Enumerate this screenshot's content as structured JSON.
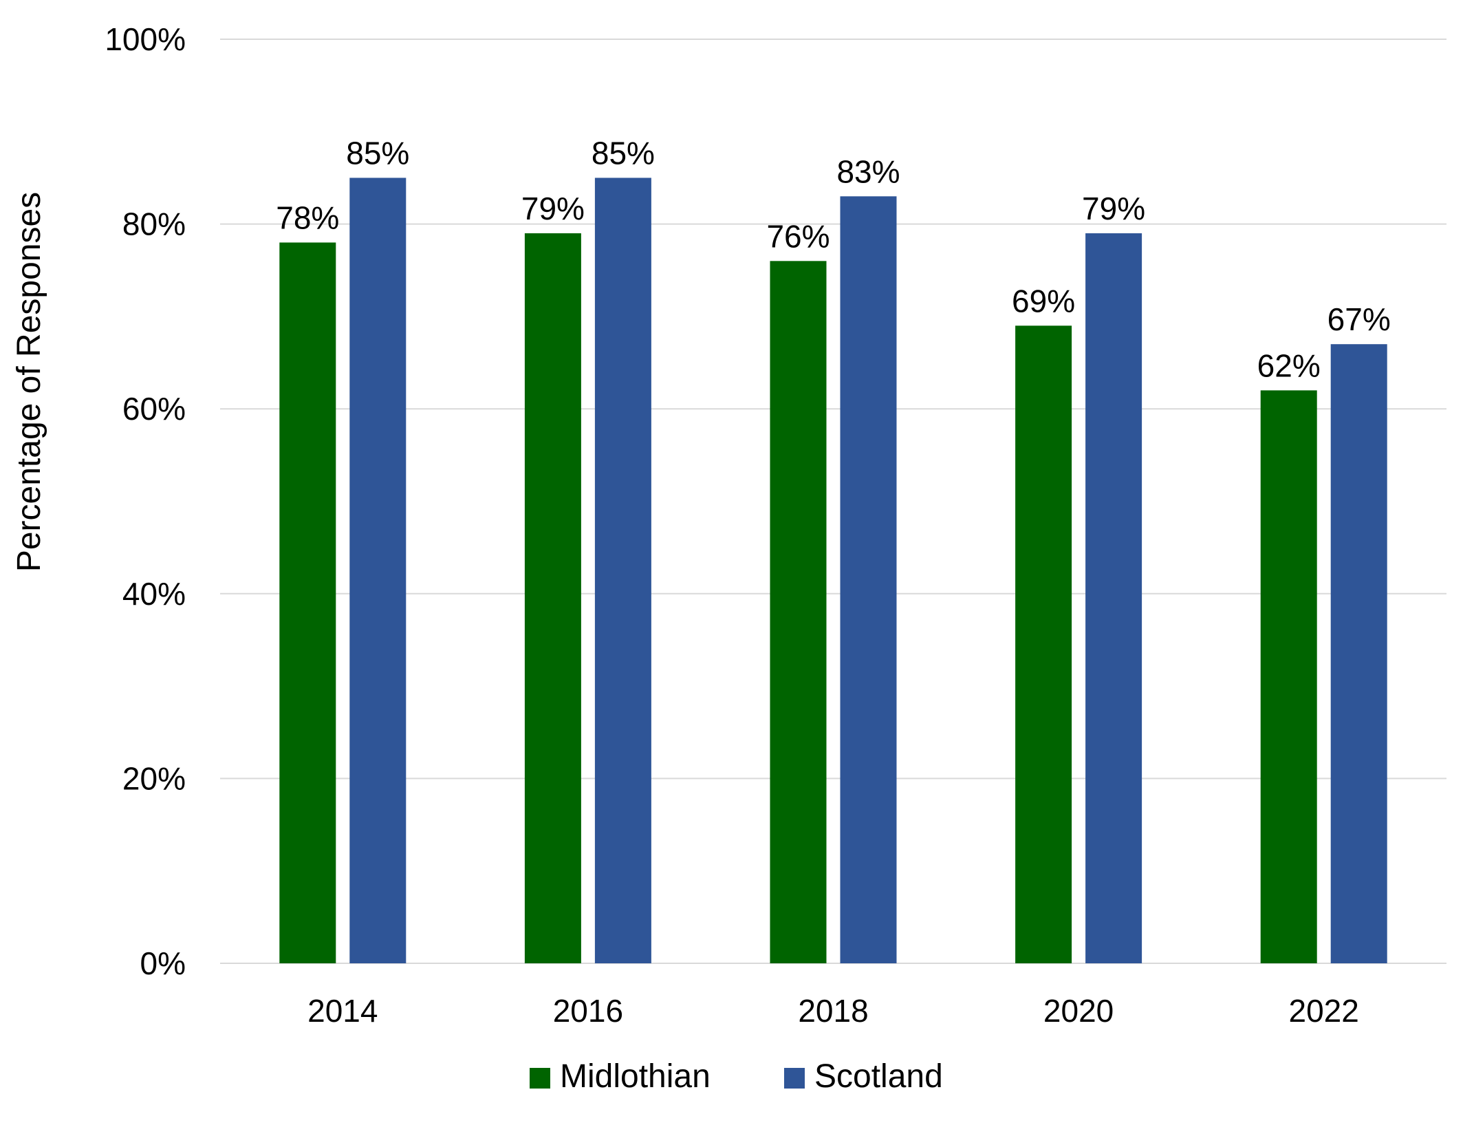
{
  "chart_data": {
    "type": "bar",
    "title": "",
    "xlabel": "",
    "ylabel": "Percentage of Responses",
    "categories": [
      "2014",
      "2016",
      "2018",
      "2020",
      "2022"
    ],
    "series": [
      {
        "name": "Midlothian",
        "color": "#006400",
        "values": [
          78,
          79,
          76,
          69,
          62
        ],
        "labels": [
          "78%",
          "79%",
          "76%",
          "69%",
          "62%"
        ]
      },
      {
        "name": "Scotland",
        "color": "#2F5597",
        "values": [
          85,
          85,
          83,
          79,
          67
        ],
        "labels": [
          "85%",
          "85%",
          "83%",
          "79%",
          "67%"
        ]
      }
    ],
    "ylim": [
      0,
      100
    ],
    "yticks": [
      0,
      20,
      40,
      60,
      80,
      100
    ],
    "ytick_labels": [
      "0%",
      "20%",
      "40%",
      "60%",
      "80%",
      "100%"
    ],
    "grid": true,
    "legend_position": "bottom"
  }
}
